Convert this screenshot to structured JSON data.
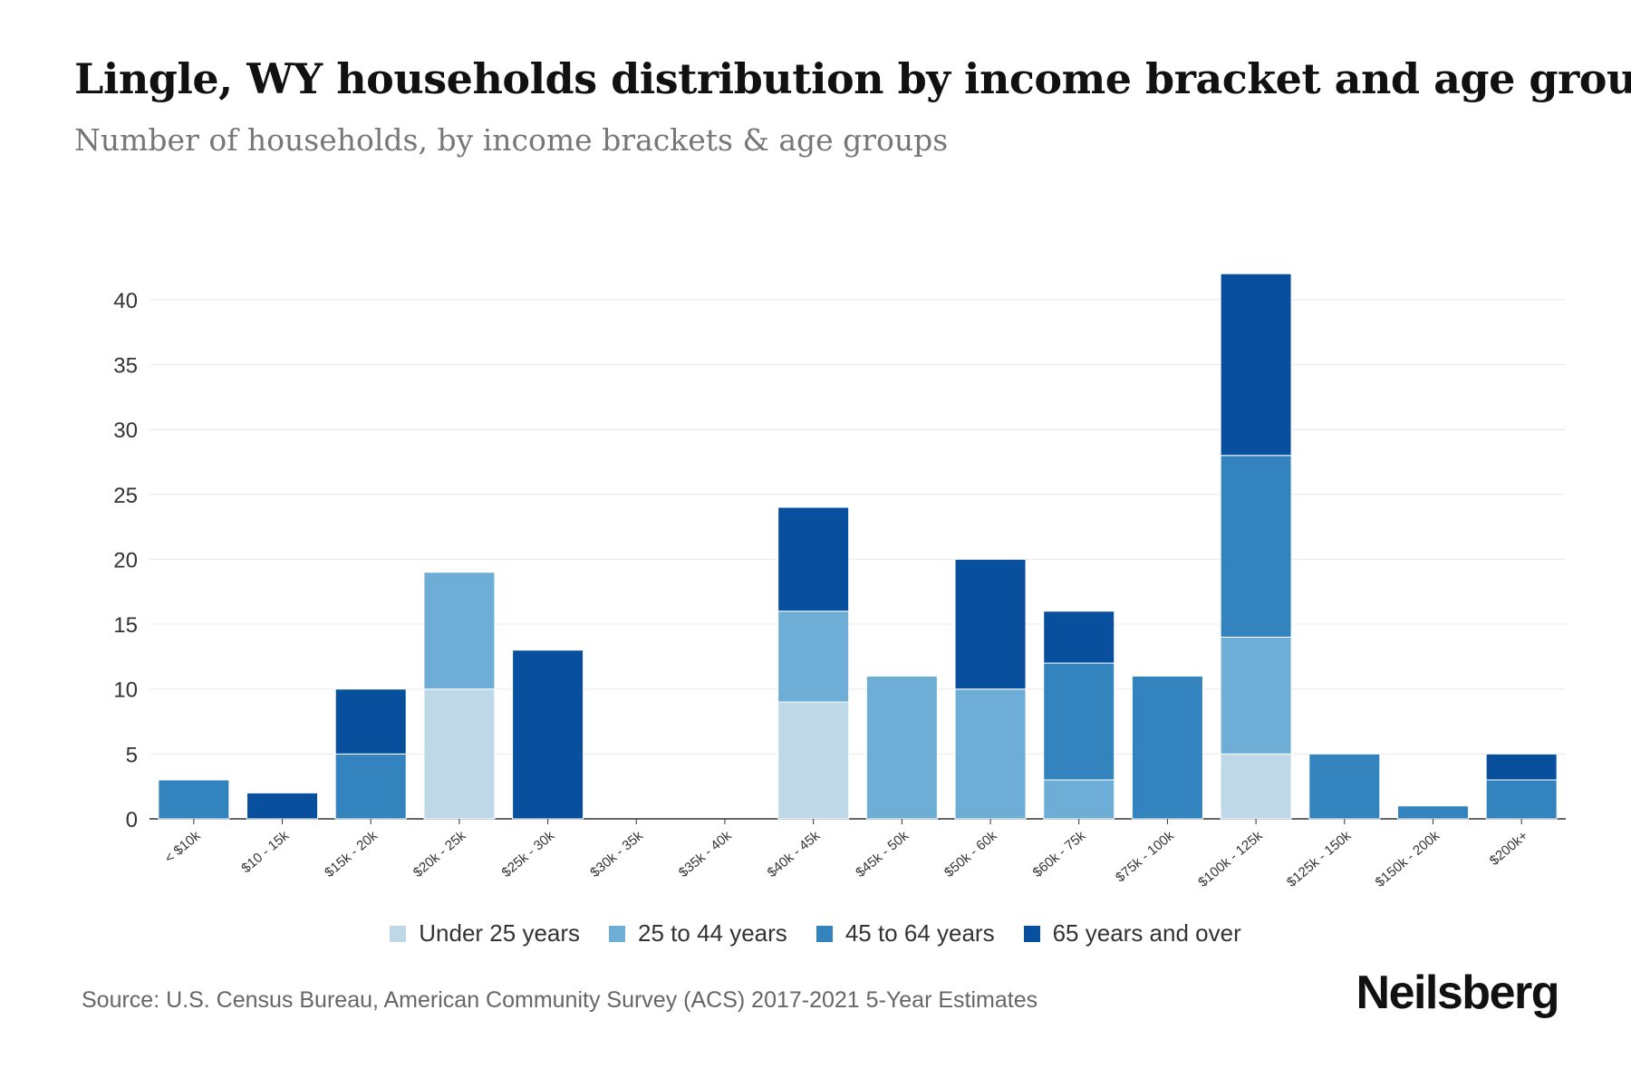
{
  "title": "Lingle, WY households distribution by income bracket and age group",
  "subtitle": "Number of households, by income brackets & age groups",
  "source": "Source: U.S. Census Bureau, American Community Survey (ACS) 2017-2021 5-Year Estimates",
  "brand": "Neilsberg",
  "chart_data": {
    "type": "bar",
    "stacked": true,
    "title": "Lingle, WY households distribution by income bracket and age group",
    "subtitle": "Number of households, by income brackets & age groups",
    "xlabel": "",
    "ylabel": "",
    "ylim": [
      0,
      42
    ],
    "yticks": [
      0,
      5,
      10,
      15,
      20,
      25,
      30,
      35,
      40
    ],
    "grid": true,
    "legend_position": "bottom",
    "categories": [
      "< $10k",
      "$10 - 15k",
      "$15k - 20k",
      "$20k - 25k",
      "$25k - 30k",
      "$30k - 35k",
      "$35k - 40k",
      "$40k - 45k",
      "$45k - 50k",
      "$50k - 60k",
      "$60k - 75k",
      "$75k - 100k",
      "$100k - 125k",
      "$125k - 150k",
      "$150k - 200k",
      "$200k+"
    ],
    "series": [
      {
        "name": "Under 25 years",
        "color": "#bed8e8",
        "values": [
          0,
          0,
          0,
          10,
          0,
          0,
          0,
          9,
          0,
          0,
          0,
          0,
          5,
          0,
          0,
          0
        ]
      },
      {
        "name": "25 to 44 years",
        "color": "#6eaed6",
        "values": [
          0,
          0,
          0,
          9,
          0,
          0,
          0,
          7,
          11,
          10,
          3,
          0,
          9,
          0,
          0,
          0
        ]
      },
      {
        "name": "45 to 64 years",
        "color": "#3283be",
        "values": [
          3,
          0,
          5,
          0,
          0,
          0,
          0,
          0,
          0,
          0,
          9,
          11,
          14,
          5,
          1,
          3
        ]
      },
      {
        "name": "65 years and over",
        "color": "#08509e",
        "values": [
          0,
          2,
          5,
          0,
          13,
          0,
          0,
          8,
          0,
          10,
          4,
          0,
          14,
          0,
          0,
          2
        ]
      }
    ]
  }
}
